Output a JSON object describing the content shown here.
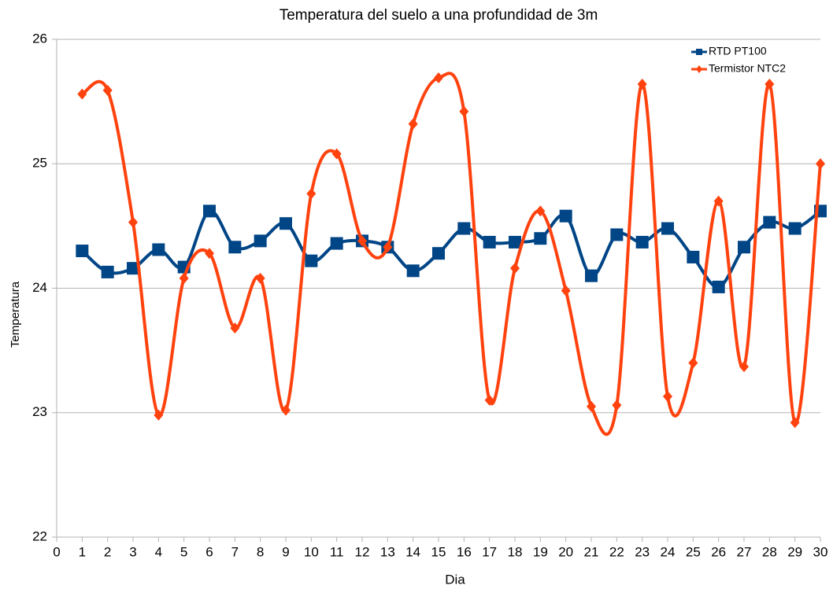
{
  "chart_data": {
    "type": "line",
    "title": "Temperatura del suelo a una profundidad de 3m",
    "x_label": "Dia",
    "y_label": "Temperatura",
    "x": [
      1,
      2,
      3,
      4,
      5,
      6,
      7,
      8,
      9,
      10,
      11,
      12,
      13,
      14,
      15,
      16,
      17,
      18,
      19,
      20,
      21,
      22,
      23,
      24,
      25,
      26,
      27,
      28,
      29,
      30
    ],
    "series": [
      {
        "name": "RTD PT100",
        "color": "#004586",
        "marker": "square",
        "values": [
          24.3,
          24.13,
          24.16,
          24.31,
          24.17,
          24.62,
          24.33,
          24.38,
          24.52,
          24.22,
          24.36,
          24.38,
          24.33,
          24.14,
          24.28,
          24.48,
          24.37,
          24.37,
          24.4,
          24.58,
          24.1,
          24.43,
          24.37,
          24.48,
          24.25,
          24.01,
          24.33,
          24.53,
          24.48,
          24.62
        ]
      },
      {
        "name": "Termistor NTC2",
        "color": "#ff420e",
        "marker": "diamond",
        "values": [
          25.56,
          25.59,
          24.53,
          22.98,
          24.08,
          24.28,
          23.68,
          24.08,
          23.02,
          24.76,
          25.08,
          24.38,
          24.33,
          25.32,
          25.69,
          25.42,
          23.1,
          24.16,
          24.62,
          23.98,
          23.05,
          23.06,
          25.64,
          23.13,
          23.4,
          24.7,
          23.37,
          25.64,
          22.92,
          25.0
        ]
      }
    ],
    "xlim": [
      0,
      30
    ],
    "xticks": [
      0,
      1,
      2,
      3,
      4,
      5,
      6,
      7,
      8,
      9,
      10,
      11,
      12,
      13,
      14,
      15,
      16,
      17,
      18,
      19,
      20,
      21,
      22,
      23,
      24,
      25,
      26,
      27,
      28,
      29,
      30
    ],
    "ylim": [
      22,
      26
    ],
    "yticks": [
      22,
      23,
      24,
      25,
      26
    ],
    "grid": true,
    "smooth": true,
    "legend": "top-right"
  }
}
